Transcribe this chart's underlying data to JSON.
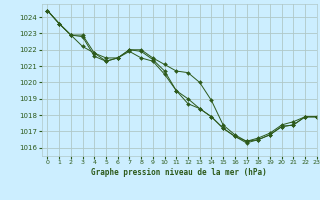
{
  "title": "Graphe pression niveau de la mer (hPa)",
  "bg_color": "#cceeff",
  "grid_color": "#b0c8c8",
  "line_color": "#2d5a1b",
  "xlim": [
    -0.5,
    23
  ],
  "ylim": [
    1015.5,
    1024.8
  ],
  "yticks": [
    1016,
    1017,
    1018,
    1019,
    1020,
    1021,
    1022,
    1023,
    1024
  ],
  "xticks": [
    0,
    1,
    2,
    3,
    4,
    5,
    6,
    7,
    8,
    9,
    10,
    11,
    12,
    13,
    14,
    15,
    16,
    17,
    18,
    19,
    20,
    21,
    22,
    23
  ],
  "series": [
    [
      1024.4,
      1023.6,
      1022.9,
      1022.2,
      1021.8,
      1021.5,
      1021.5,
      1022.0,
      1021.9,
      1021.4,
      1020.7,
      1019.5,
      1019.0,
      1018.4,
      1017.9,
      1017.2,
      1016.7,
      1016.3,
      1016.5,
      1016.8,
      1017.3,
      1017.4,
      1017.9,
      1017.9
    ],
    [
      1024.4,
      1023.6,
      1022.9,
      1022.8,
      1021.6,
      1021.3,
      1021.5,
      1022.0,
      1022.0,
      1021.5,
      1021.1,
      1020.7,
      1020.6,
      1020.0,
      1018.9,
      1017.4,
      1016.8,
      1016.4,
      1016.6,
      1016.9,
      1017.4,
      1017.6,
      1017.9,
      1017.9
    ],
    [
      1024.4,
      1023.6,
      1022.9,
      1022.9,
      1021.8,
      1021.3,
      1021.5,
      1021.9,
      1021.5,
      1021.3,
      1020.5,
      1019.5,
      1018.7,
      1018.4,
      1017.9,
      1017.2,
      1016.7,
      1016.4,
      1016.5,
      1016.8,
      1017.3,
      1017.4,
      1017.9,
      1017.9
    ]
  ]
}
